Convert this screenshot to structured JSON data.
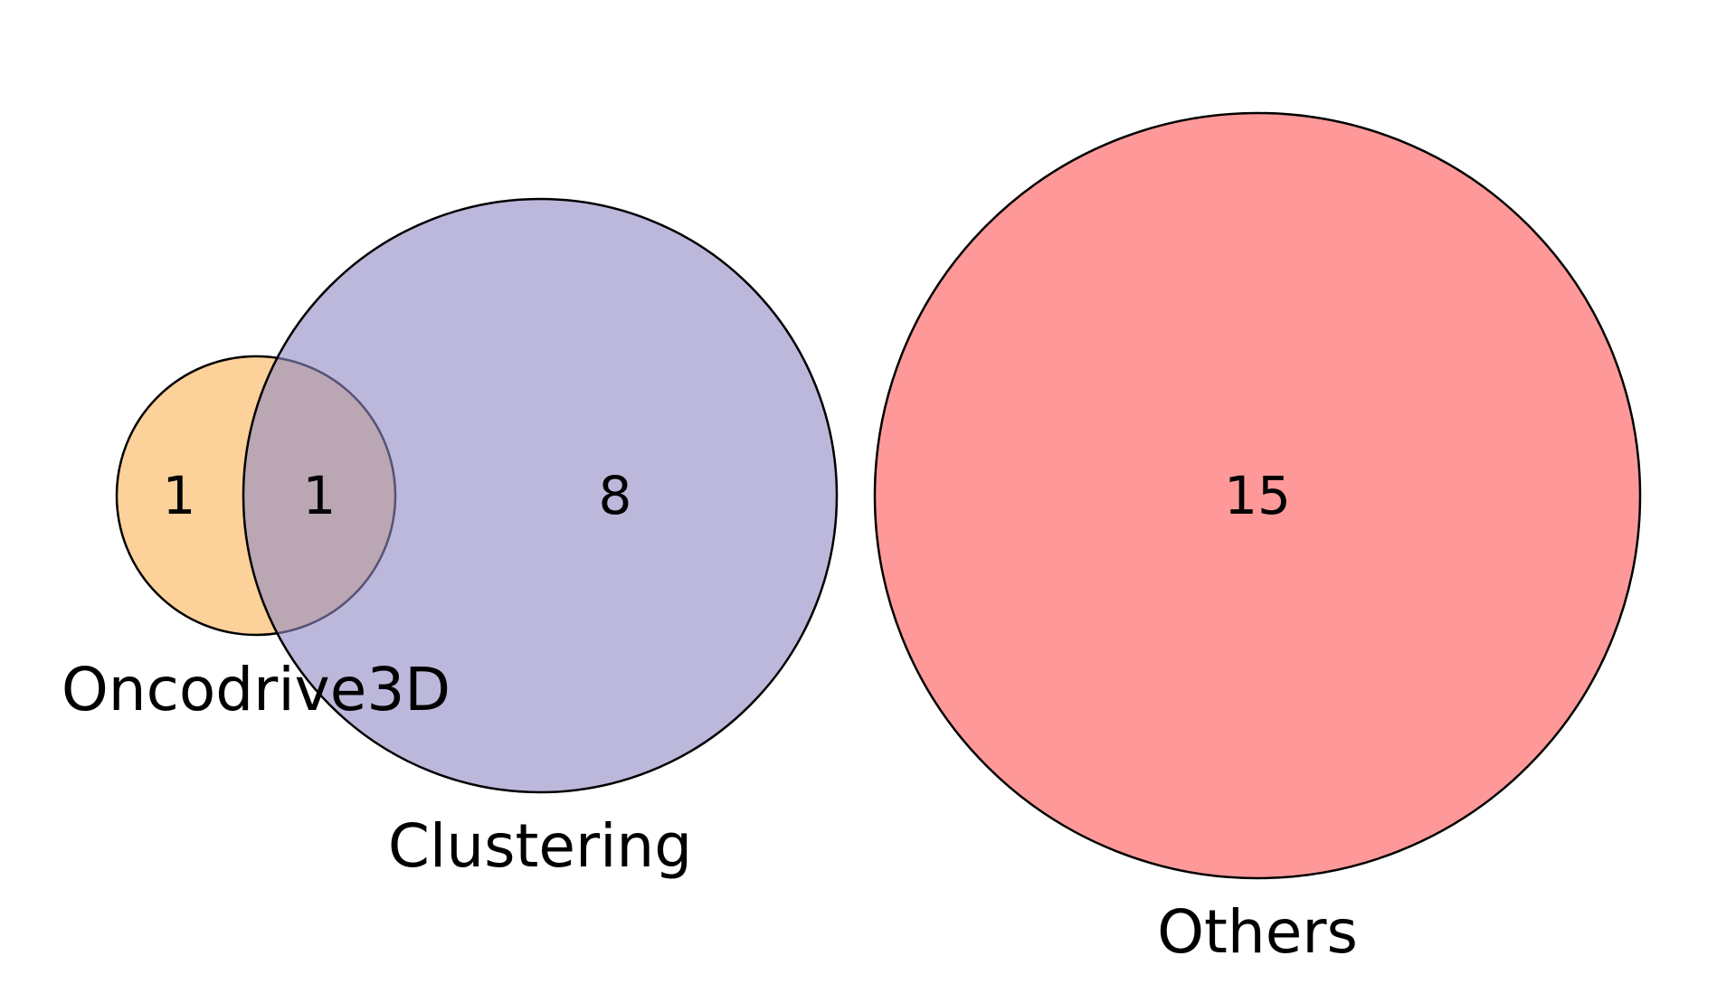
{
  "diagram": {
    "type": "venn",
    "sets": [
      {
        "id": "oncodrive3d",
        "label": "Oncodrive3D",
        "color": "#fdd19a",
        "size": 2
      },
      {
        "id": "clustering",
        "label": "Clustering",
        "color": "#8f88c4",
        "size": 9
      },
      {
        "id": "others",
        "label": "Others",
        "color": "#ff7f7f",
        "size": 15
      }
    ],
    "regions": {
      "oncodrive3d_only": "1",
      "oncodrive3d_and_clustering": "1",
      "clustering_only": "8",
      "others_only": "15"
    }
  }
}
